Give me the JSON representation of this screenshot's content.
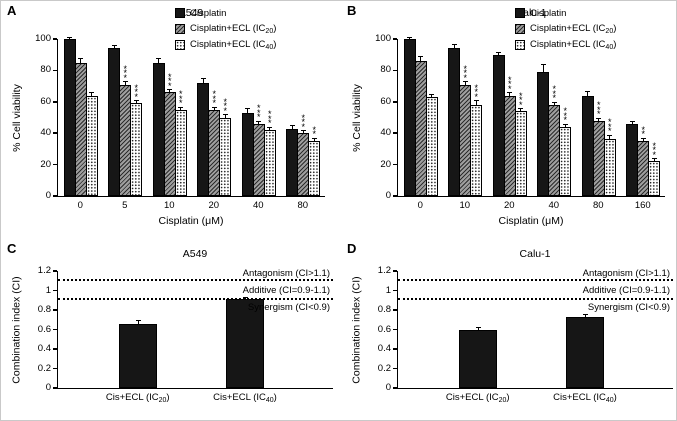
{
  "figure": {
    "description": "Four-panel bar chart figure: cell viability and combination index"
  },
  "chart_data": [
    {
      "id": "A",
      "type": "bar",
      "panel_label": "A",
      "title": "A549",
      "xlabel": "Cisplatin (μM)",
      "ylabel": "% Cell viability",
      "ylim": [
        0,
        100
      ],
      "yticks": [
        0,
        20,
        40,
        60,
        80,
        100
      ],
      "categories": [
        "0",
        "5",
        "10",
        "20",
        "40",
        "80"
      ],
      "legend_position": "top-right",
      "series": [
        {
          "name": "Cisplatin",
          "pattern": "solid",
          "values": [
            100,
            94,
            85,
            72,
            53,
            43
          ],
          "errors": [
            1,
            2,
            3,
            3,
            3,
            2
          ],
          "sig": [
            "",
            "",
            "",
            "",
            "",
            ""
          ]
        },
        {
          "name": "Cisplatin+ECL (IC20)",
          "pattern": "hatch",
          "values": [
            85,
            71,
            66,
            55,
            46,
            40
          ],
          "errors": [
            3,
            2,
            2,
            2,
            2,
            2
          ],
          "sig": [
            "",
            "***",
            "***",
            "***",
            "***",
            "***"
          ]
        },
        {
          "name": "Cisplatin+ECL (IC40)",
          "pattern": "dots",
          "values": [
            64,
            59,
            55,
            50,
            42,
            35
          ],
          "errors": [
            2,
            2,
            2,
            2,
            2,
            2
          ],
          "sig": [
            "",
            "***",
            "***",
            "***",
            "***",
            "**"
          ]
        }
      ]
    },
    {
      "id": "B",
      "type": "bar",
      "panel_label": "B",
      "title": "Calu-1",
      "xlabel": "Cisplatin (μM)",
      "ylabel": "% Cell viability",
      "ylim": [
        0,
        100
      ],
      "yticks": [
        0,
        20,
        40,
        60,
        80,
        100
      ],
      "categories": [
        "0",
        "10",
        "20",
        "40",
        "80",
        "160"
      ],
      "legend_position": "top-right",
      "series": [
        {
          "name": "Cisplatin",
          "pattern": "solid",
          "values": [
            100,
            94,
            90,
            79,
            64,
            46
          ],
          "errors": [
            1,
            3,
            2,
            5,
            3,
            2
          ],
          "sig": [
            "",
            "",
            "",
            "",
            "",
            ""
          ]
        },
        {
          "name": "Cisplatin+ECL (IC20)",
          "pattern": "hatch",
          "values": [
            86,
            71,
            64,
            58,
            48,
            35
          ],
          "errors": [
            3,
            2,
            2,
            2,
            2,
            2
          ],
          "sig": [
            "",
            "***",
            "***",
            "***",
            "***",
            "**"
          ]
        },
        {
          "name": "Cisplatin+ECL (IC40)",
          "pattern": "dots",
          "values": [
            63,
            58,
            54,
            44,
            36,
            22
          ],
          "errors": [
            2,
            3,
            2,
            2,
            3,
            2
          ],
          "sig": [
            "",
            "***",
            "***",
            "***",
            "***",
            "***"
          ]
        }
      ]
    },
    {
      "id": "C",
      "type": "bar",
      "panel_label": "C",
      "title": "A549",
      "ylabel": "Combination index (CI)",
      "ylim": [
        0,
        1.2
      ],
      "yticks": [
        0,
        0.2,
        0.4,
        0.6,
        0.8,
        1,
        1.2
      ],
      "categories": [
        "Cis+ECL (IC20)",
        "Cis+ECL (IC40)"
      ],
      "values": [
        0.66,
        0.91
      ],
      "errors": [
        0.04,
        0.02
      ],
      "reference_lines": [
        {
          "y": 1.1,
          "style": "dotted"
        },
        {
          "y": 0.9,
          "style": "dotted"
        }
      ],
      "annotations": [
        {
          "text": "Antagonism (CI>1.1)",
          "position": "above"
        },
        {
          "text": "Additive (CI=0.9-1.1)",
          "position": "between"
        },
        {
          "text": "Synergism (CI<0.9)",
          "position": "below"
        }
      ]
    },
    {
      "id": "D",
      "type": "bar",
      "panel_label": "D",
      "title": "Calu-1",
      "ylabel": "Combination index (CI)",
      "ylim": [
        0,
        1.2
      ],
      "yticks": [
        0,
        0.2,
        0.4,
        0.6,
        0.8,
        1,
        1.2
      ],
      "categories": [
        "Cis+ECL (IC20)",
        "Cis+ECL (IC40)"
      ],
      "values": [
        0.6,
        0.73
      ],
      "errors": [
        0.03,
        0.03
      ],
      "reference_lines": [
        {
          "y": 1.1,
          "style": "dotted"
        },
        {
          "y": 0.9,
          "style": "dotted"
        }
      ],
      "annotations": [
        {
          "text": "Antagonism (CI>1.1)",
          "position": "above"
        },
        {
          "text": "Additive (CI=0.9-1.1)",
          "position": "between"
        },
        {
          "text": "Synergism (CI<0.9)",
          "position": "below"
        }
      ]
    }
  ]
}
